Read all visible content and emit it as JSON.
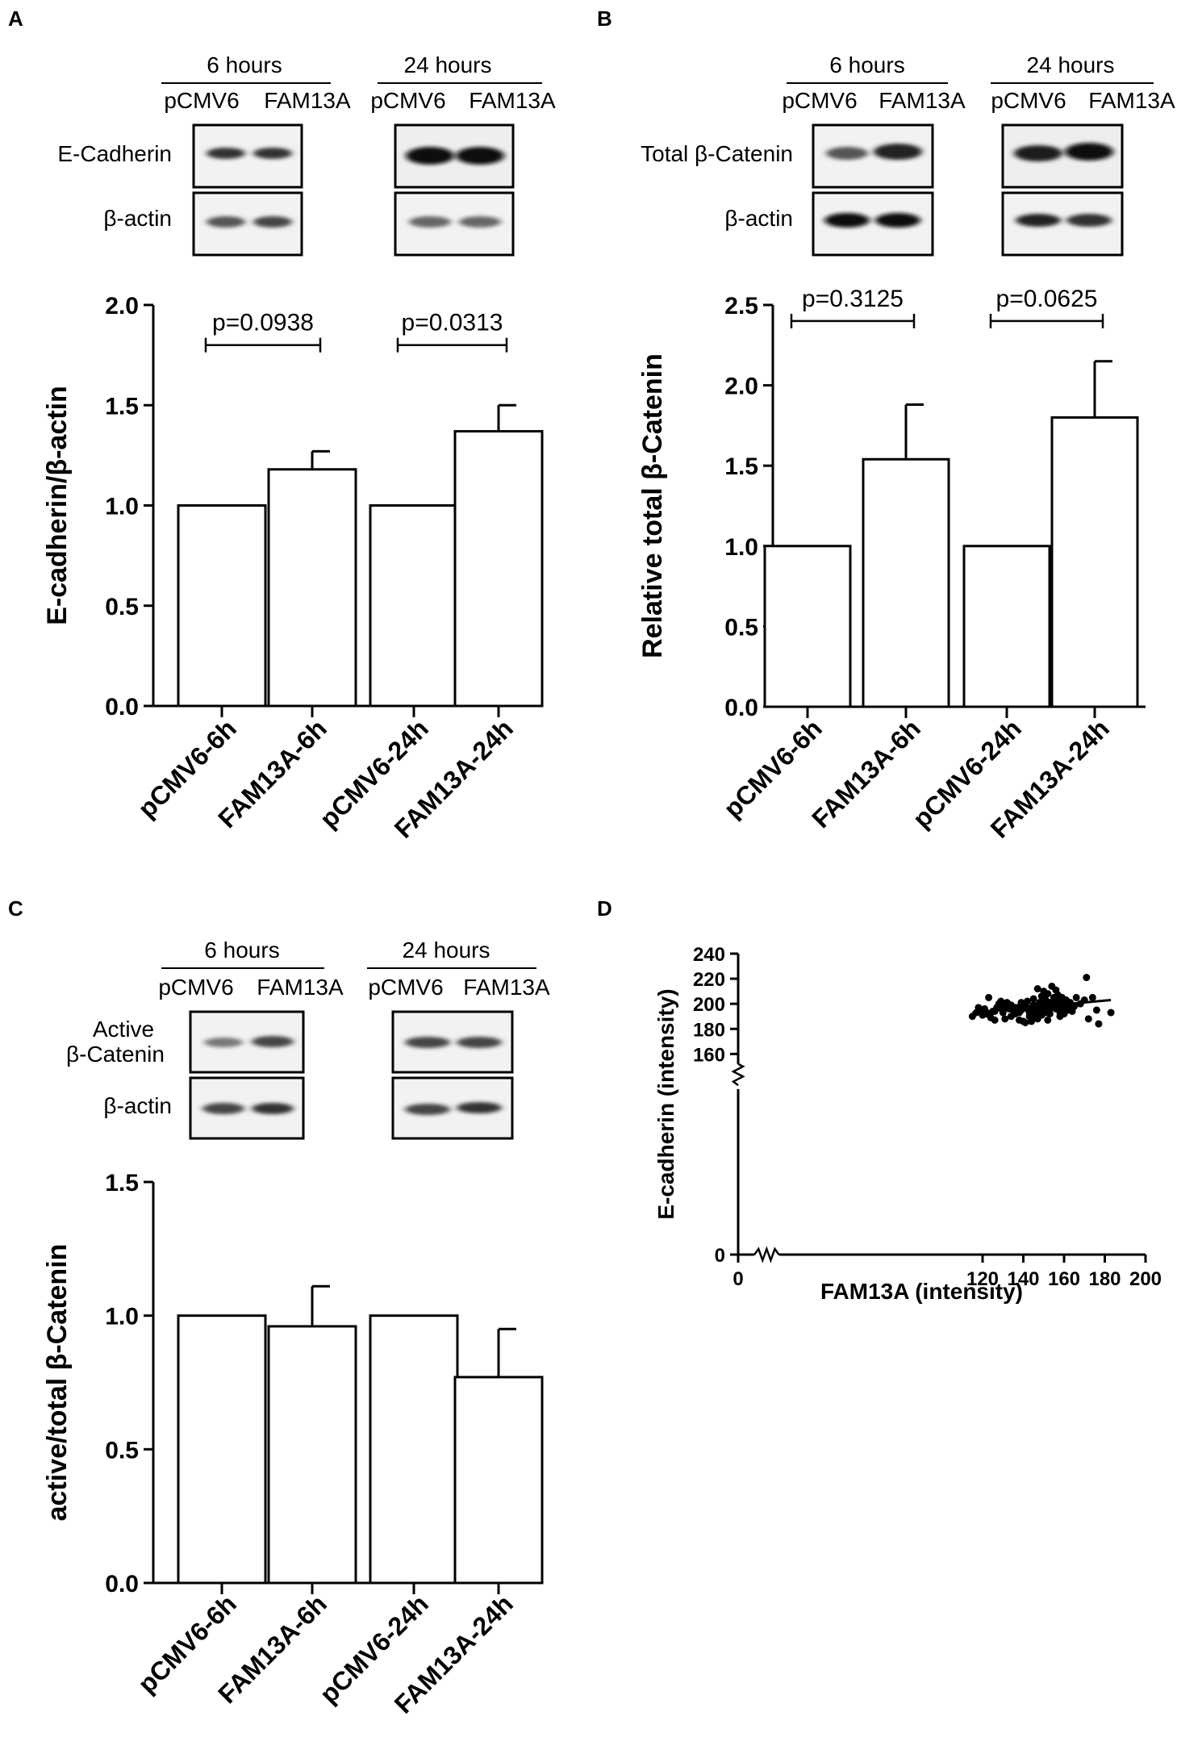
{
  "panels": {
    "A": {
      "label": "A",
      "blot": {
        "time_headers": [
          "6 hours",
          "24 hours"
        ],
        "lane_labels": [
          "pCMV6",
          "FAM13A",
          "pCMV6",
          "FAM13A"
        ],
        "proteins": [
          "E-Cadherin",
          "β-actin"
        ]
      }
    },
    "B": {
      "label": "B",
      "blot": {
        "time_headers": [
          "6 hours",
          "24 hours"
        ],
        "lane_labels": [
          "pCMV6",
          "FAM13A",
          "pCMV6",
          "FAM13A"
        ],
        "proteins": [
          "Total β-Catenin",
          "β-actin"
        ]
      }
    },
    "C": {
      "label": "C",
      "blot": {
        "time_headers": [
          "6 hours",
          "24 hours"
        ],
        "lane_labels": [
          "pCMV6",
          "FAM13A",
          "pCMV6",
          "FAM13A"
        ],
        "proteins": [
          "Active",
          "β-Catenin",
          "β-actin"
        ]
      }
    },
    "D": {
      "label": "D"
    }
  },
  "colors": {
    "ink": "#000000",
    "paper": "#ffffff",
    "blot_bg": "#f2f2f2",
    "band": "#1a1a1a"
  },
  "chart_data": [
    {
      "id": "A",
      "type": "bar",
      "categories": [
        "pCMV6-6h",
        "FAM13A-6h",
        "pCMV6-24h",
        "FAM13A-24h"
      ],
      "values": [
        1.0,
        1.18,
        1.0,
        1.37
      ],
      "errors": [
        0,
        0.09,
        0,
        0.13
      ],
      "ylabel": "E-cadherin/β-actin",
      "ylim": [
        0,
        2.0
      ],
      "yticks": [
        "0.0",
        "0.5",
        "1.0",
        "1.5",
        "2.0"
      ],
      "comparisons": [
        {
          "from": 0,
          "to": 1,
          "label": "p=0.0938",
          "level": 1.8
        },
        {
          "from": 2,
          "to": 3,
          "label": "p=0.0313",
          "level": 1.8
        }
      ]
    },
    {
      "id": "B",
      "type": "bar",
      "categories": [
        "pCMV6-6h",
        "FAM13A-6h",
        "pCMV6-24h",
        "FAM13A-24h"
      ],
      "values": [
        1.0,
        1.54,
        1.0,
        1.8
      ],
      "errors": [
        0,
        0.34,
        0,
        0.35
      ],
      "ylabel": "Relative total β-Catenin",
      "ylim": [
        0,
        2.5
      ],
      "yticks": [
        "0.0",
        "0.5",
        "1.0",
        "1.5",
        "2.0",
        "2.5"
      ],
      "comparisons": [
        {
          "from": 0,
          "to": 1,
          "label": "p=0.3125",
          "level": 2.4
        },
        {
          "from": 2,
          "to": 3,
          "label": "p=0.0625",
          "level": 2.4
        }
      ]
    },
    {
      "id": "C",
      "type": "bar",
      "categories": [
        "pCMV6-6h",
        "FAM13A-6h",
        "pCMV6-24h",
        "FAM13A-24h"
      ],
      "values": [
        1.0,
        0.96,
        1.0,
        0.77
      ],
      "errors": [
        0,
        0.15,
        0,
        0.18
      ],
      "ylabel": "active/total β-Catenin",
      "ylim": [
        0,
        1.5
      ],
      "yticks": [
        "0.0",
        "0.5",
        "1.0",
        "1.5"
      ],
      "comparisons": []
    },
    {
      "id": "D",
      "type": "scatter",
      "xlabel": "FAM13A (intensity)",
      "ylabel": "E-cadherin (intensity)",
      "xlim": [
        0,
        200
      ],
      "ylim": [
        0,
        240
      ],
      "xticks": [
        "0",
        "120",
        "140",
        "160",
        "180",
        "200"
      ],
      "yticks": [
        "0",
        "160",
        "180",
        "200",
        "220",
        "240"
      ],
      "axis_break": {
        "x": [
          0,
          100
        ],
        "y": [
          0,
          150
        ]
      },
      "trendline": {
        "x": [
          115,
          183
        ],
        "y": [
          193,
          203
        ]
      },
      "points": [
        [
          115,
          190
        ],
        [
          117,
          193
        ],
        [
          119,
          195
        ],
        [
          120,
          191
        ],
        [
          121,
          196
        ],
        [
          122,
          192
        ],
        [
          123,
          205
        ],
        [
          124,
          189
        ],
        [
          125,
          194
        ],
        [
          126,
          187
        ],
        [
          127,
          197
        ],
        [
          128,
          200
        ],
        [
          129,
          202
        ],
        [
          130,
          193
        ],
        [
          131,
          188
        ],
        [
          132,
          201
        ],
        [
          133,
          196
        ],
        [
          134,
          190
        ],
        [
          135,
          195
        ],
        [
          136,
          192
        ],
        [
          137,
          197
        ],
        [
          138,
          187
        ],
        [
          139,
          195
        ],
        [
          140,
          198
        ],
        [
          140,
          186
        ],
        [
          141,
          200
        ],
        [
          141,
          185
        ],
        [
          142,
          202
        ],
        [
          143,
          193
        ],
        [
          143,
          190
        ],
        [
          144,
          197
        ],
        [
          144,
          186
        ],
        [
          145,
          204
        ],
        [
          145,
          199
        ],
        [
          146,
          192
        ],
        [
          146,
          195
        ],
        [
          147,
          212
        ],
        [
          147,
          188
        ],
        [
          148,
          201
        ],
        [
          148,
          196
        ],
        [
          149,
          206
        ],
        [
          149,
          191
        ],
        [
          150,
          210
        ],
        [
          150,
          199
        ],
        [
          151,
          193
        ],
        [
          151,
          203
        ],
        [
          152,
          208
        ],
        [
          152,
          187
        ],
        [
          153,
          201
        ],
        [
          153,
          196
        ],
        [
          154,
          214
        ],
        [
          154,
          198
        ],
        [
          155,
          205
        ],
        [
          155,
          200
        ],
        [
          156,
          211
        ],
        [
          156,
          196
        ],
        [
          157,
          207
        ],
        [
          157,
          202
        ],
        [
          158,
          193
        ],
        [
          158,
          198
        ],
        [
          159,
          205
        ],
        [
          159,
          201
        ],
        [
          160,
          197
        ],
        [
          160,
          200
        ],
        [
          161,
          203
        ],
        [
          162,
          199
        ],
        [
          162,
          195
        ],
        [
          163,
          201
        ],
        [
          164,
          196
        ],
        [
          165,
          198
        ],
        [
          166,
          205
        ],
        [
          168,
          200
        ],
        [
          170,
          203
        ],
        [
          171,
          221
        ],
        [
          172,
          188
        ],
        [
          174,
          205
        ],
        [
          176,
          195
        ],
        [
          177,
          184
        ],
        [
          183,
          193
        ],
        [
          118,
          197
        ],
        [
          126,
          194
        ],
        [
          134,
          199
        ],
        [
          138,
          193
        ],
        [
          150,
          197
        ],
        [
          156,
          203
        ],
        [
          160,
          192
        ],
        [
          130,
          197
        ],
        [
          142,
          196
        ],
        [
          148,
          193
        ],
        [
          136,
          197
        ],
        [
          153,
          192
        ],
        [
          158,
          190
        ],
        [
          164,
          194
        ],
        [
          146,
          190
        ],
        [
          139,
          201
        ]
      ]
    }
  ]
}
